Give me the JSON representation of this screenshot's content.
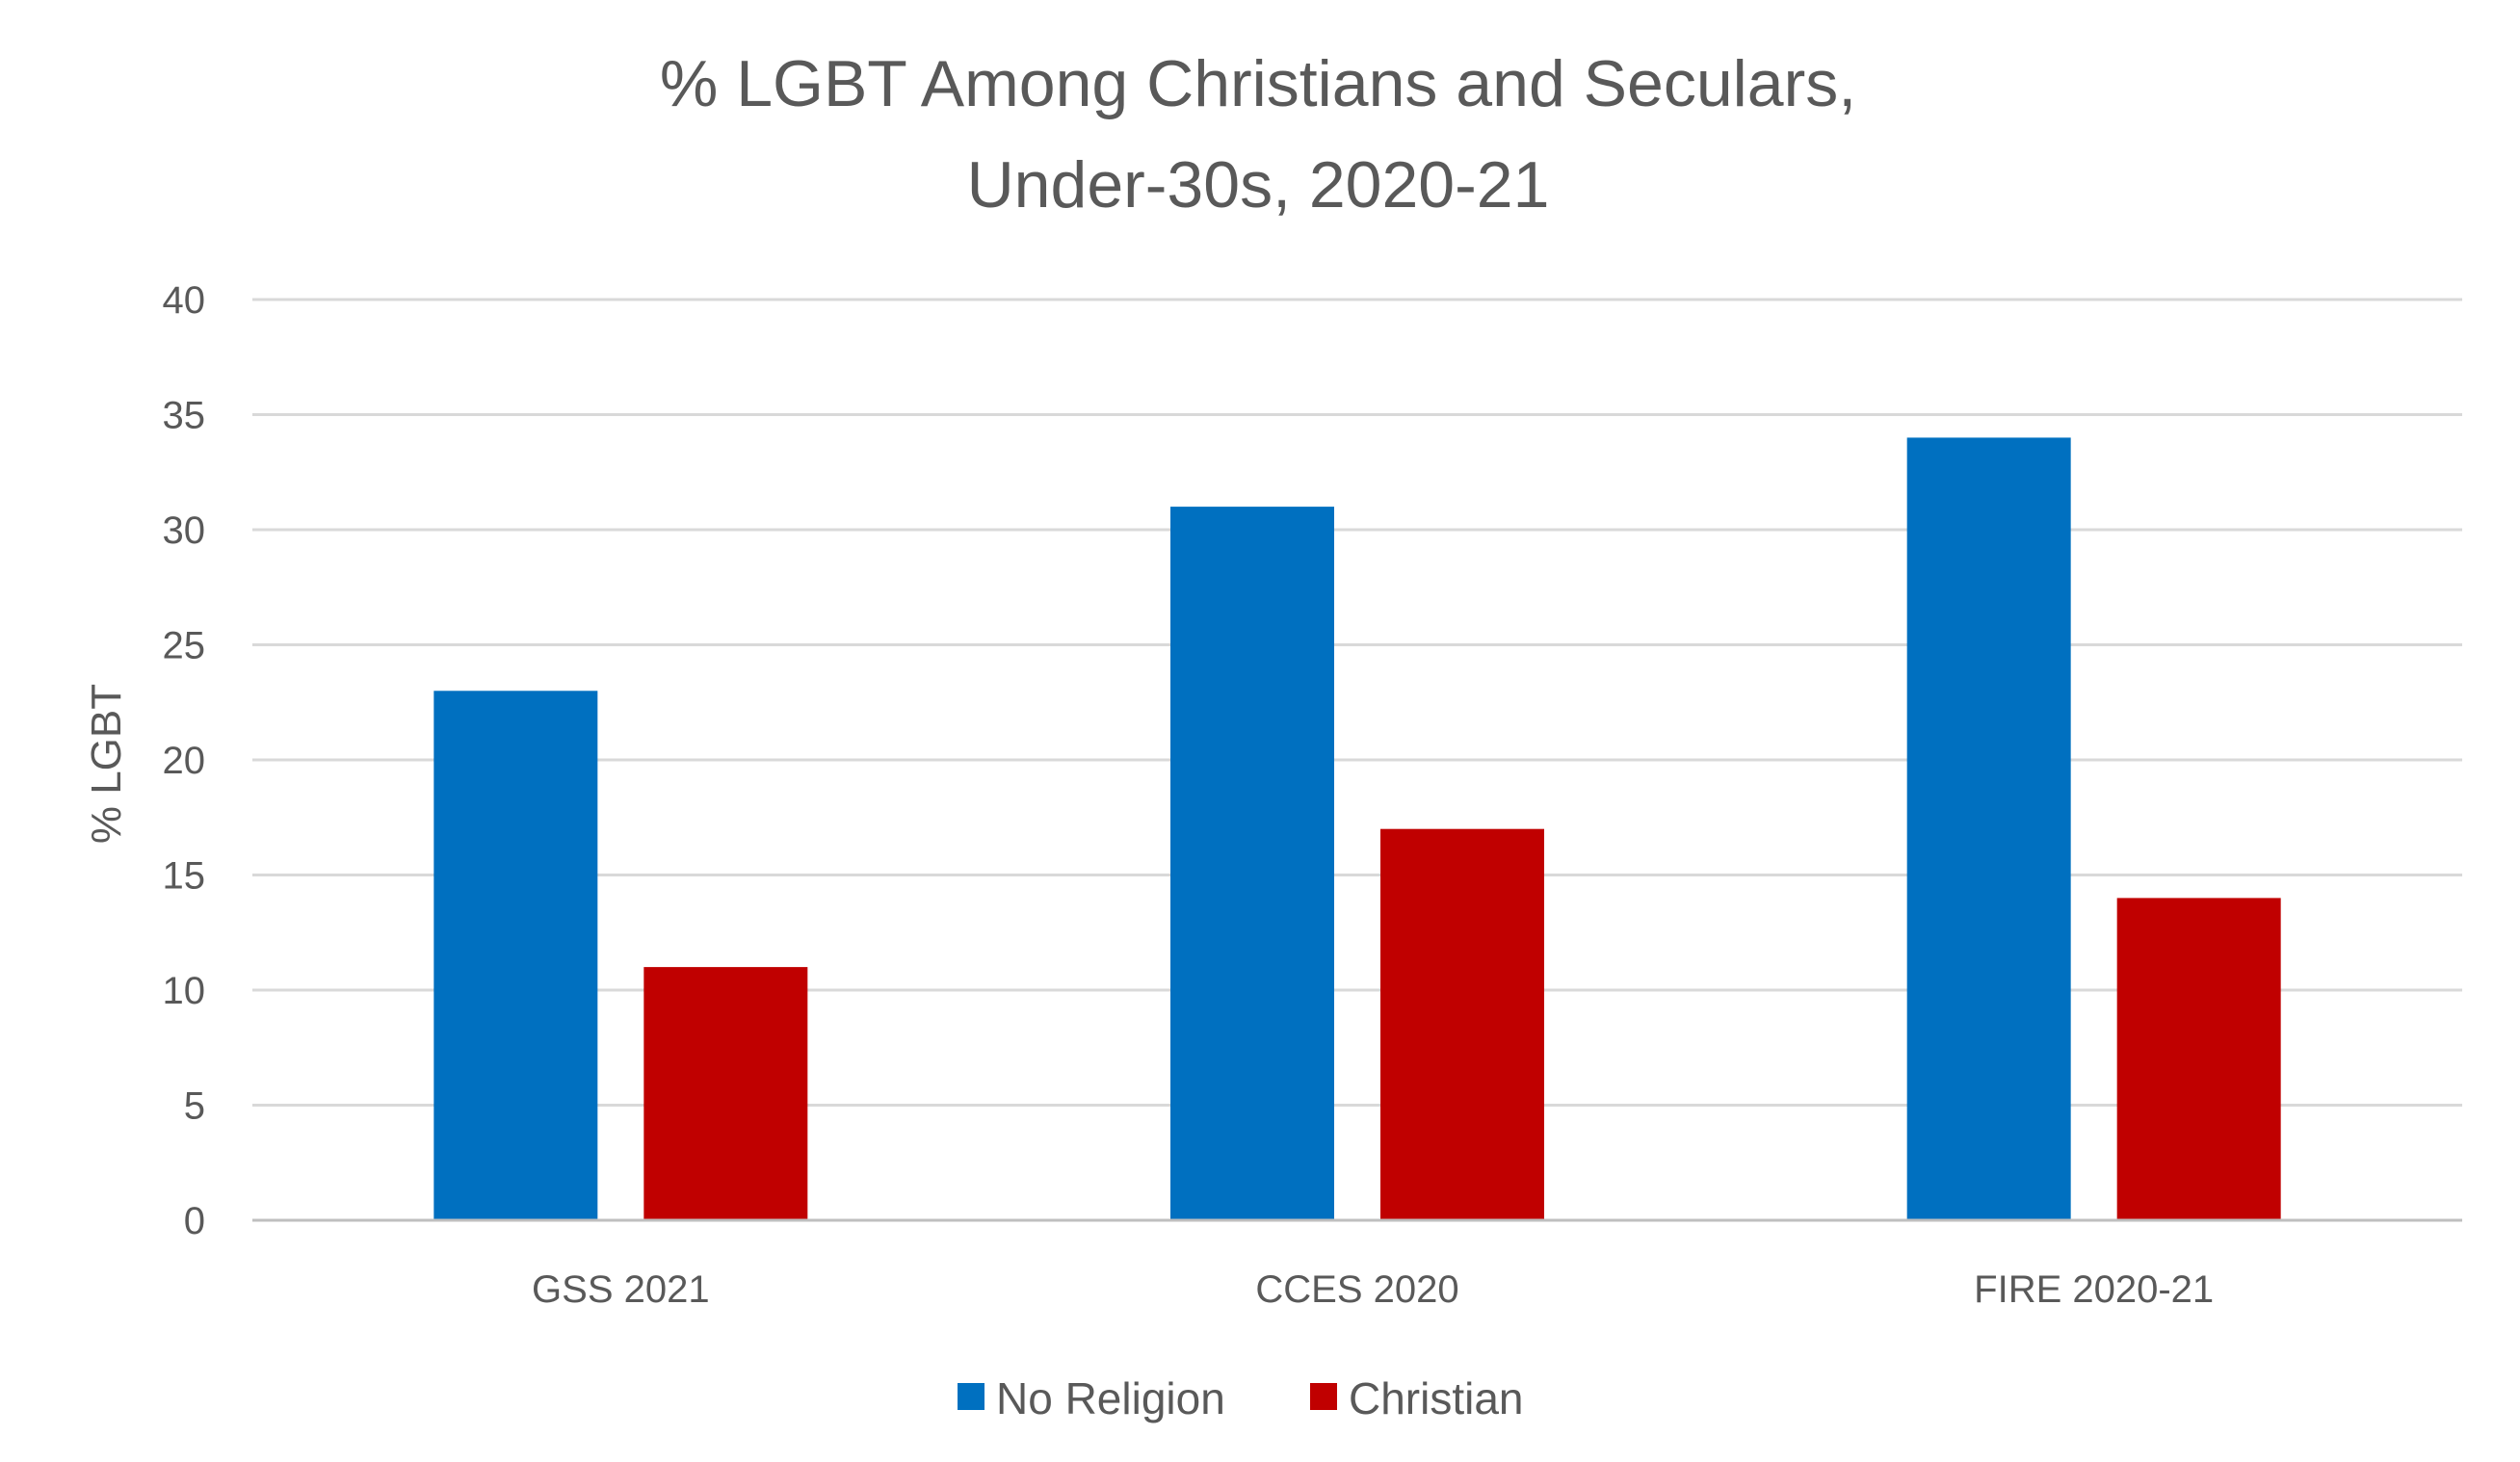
{
  "chart_data": {
    "type": "bar",
    "title": [
      "% LGBT Among Christians and Seculars,",
      "Under-30s, 2020-21"
    ],
    "ylabel": "% LGBT",
    "xlabel": "",
    "categories": [
      "GSS 2021",
      "CCES 2020",
      "FIRE 2020-21"
    ],
    "series": [
      {
        "name": "No Religion",
        "color": "#0070C0",
        "values": [
          23,
          31,
          34
        ]
      },
      {
        "name": "Christian",
        "color": "#C00000",
        "values": [
          11,
          17,
          14
        ]
      }
    ],
    "ylim": [
      0,
      40
    ],
    "yticks": [
      0,
      5,
      10,
      15,
      20,
      25,
      30,
      35,
      40
    ],
    "grid": true,
    "legend_position": "bottom"
  }
}
